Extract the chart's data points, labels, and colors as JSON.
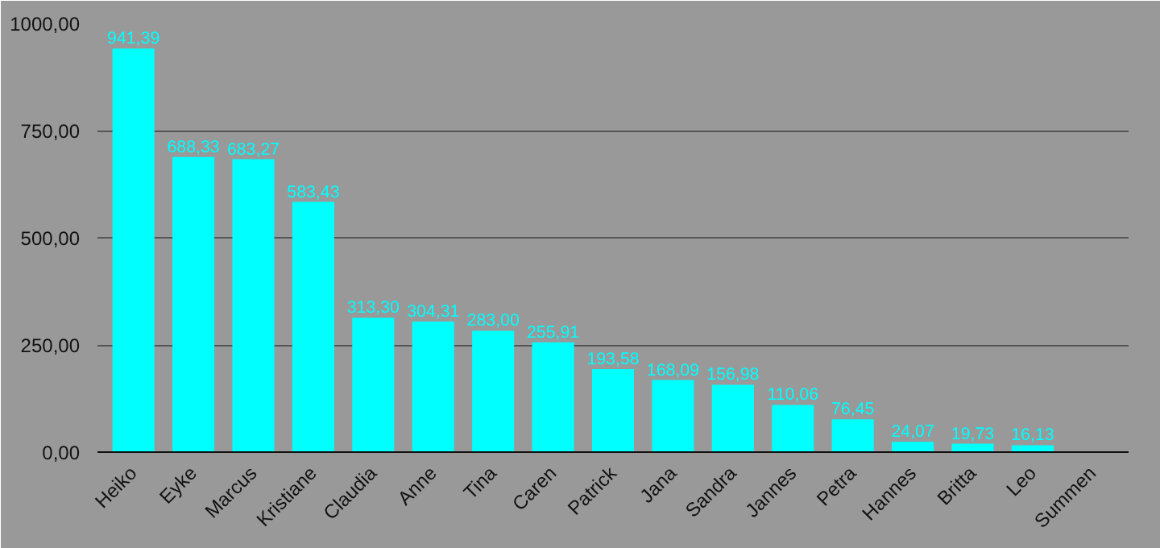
{
  "chart_data": {
    "type": "bar",
    "categories": [
      "Heiko",
      "Eyke",
      "Marcus",
      "Kristiane",
      "Claudia",
      "Anne",
      "Tina",
      "Caren",
      "Patrick",
      "Jana",
      "Sandra",
      "Jannes",
      "Petra",
      "Hannes",
      "Britta",
      "Leo",
      "Summen"
    ],
    "series": [
      {
        "color": "#00ffff",
        "values": [
          941.39,
          688.33,
          683.27,
          583.43,
          313.3,
          304.31,
          283.0,
          255.91,
          193.58,
          168.09,
          156.98,
          110.06,
          76.45,
          24.07,
          19.73,
          16.13,
          null
        ],
        "value_labels": [
          "941,39",
          "688,33",
          "683,27",
          "583,43",
          "313,30",
          "304,31",
          "283,00",
          "255,91",
          "193,58",
          "168,09",
          "156,98",
          "110,06",
          "76,45",
          "24,07",
          "19,73",
          "16,13",
          null
        ]
      }
    ],
    "ylim": [
      0,
      1000
    ],
    "yticks": [
      {
        "value": 0,
        "label": "0,00"
      },
      {
        "value": 250,
        "label": "250,00"
      },
      {
        "value": 500,
        "label": "500,00"
      },
      {
        "value": 750,
        "label": "750,00"
      },
      {
        "value": 1000,
        "label": "1000,00"
      }
    ],
    "grid": "y"
  }
}
